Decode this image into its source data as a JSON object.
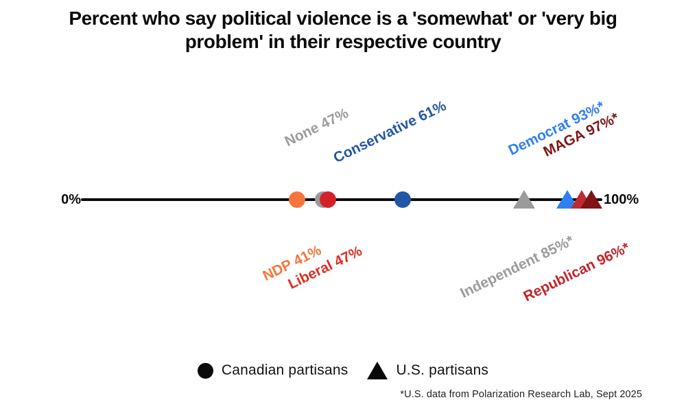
{
  "title": "Percent who say political violence is a 'somewhat' or 'very big problem' in their respective country",
  "axis": {
    "left_label": "0%",
    "right_label": "100%"
  },
  "legend": [
    {
      "shape": "circle",
      "label": "Canadian partisans",
      "color": "#0a0a0a"
    },
    {
      "shape": "triangle",
      "label": "U.S. partisans",
      "color": "#0a0a0a"
    }
  ],
  "footnote": "*U.S. data from Polarization Research Lab, Sept 2025",
  "chart_data": {
    "type": "scatter",
    "title": "Percent who say political violence is a 'somewhat' or 'very big problem' in their respective country",
    "xlabel": "",
    "ylabel": "",
    "xlim": [
      0,
      100
    ],
    "axis_tick_labels": [
      "0%",
      "100%"
    ],
    "legend_position": "bottom",
    "grid": false,
    "marker_meaning": {
      "circle": "Canadian partisans",
      "triangle": "U.S. partisans"
    },
    "points": [
      {
        "id": "ndp",
        "party": "NDP",
        "country": "Canada",
        "shape": "circle",
        "value": 41,
        "color": "#F5763C",
        "label": "NDP 41%",
        "label_color": "#F5763C",
        "label_side": "below"
      },
      {
        "id": "none",
        "party": "None",
        "country": "Canada",
        "shape": "circle",
        "value": 47,
        "color": "#9B9B9B",
        "label": "None 47%",
        "label_color": "#9B9B9B",
        "label_side": "above"
      },
      {
        "id": "liberal",
        "party": "Liberal",
        "country": "Canada",
        "shape": "circle",
        "value": 47,
        "color": "#D42127",
        "label": "Liberal 47%",
        "label_color": "#DC2E22",
        "label_side": "below"
      },
      {
        "id": "conservative",
        "party": "Conservative",
        "country": "Canada",
        "shape": "circle",
        "value": 61,
        "color": "#2356A6",
        "label": "Conservative 61%",
        "label_color": "#2356A6",
        "label_side": "above"
      },
      {
        "id": "independent",
        "party": "Independent",
        "country": "U.S.",
        "shape": "triangle",
        "value": 85,
        "color": "#9B9B9B",
        "label": "Independent 85%*",
        "label_color": "#9B9B9B",
        "label_side": "below"
      },
      {
        "id": "democrat",
        "party": "Democrat",
        "country": "U.S.",
        "shape": "triangle",
        "value": 93,
        "color": "#2E80F0",
        "label": "Democrat 93%*",
        "label_color": "#2E80F0",
        "label_side": "above"
      },
      {
        "id": "republican",
        "party": "Republican",
        "country": "U.S.",
        "shape": "triangle",
        "value": 96,
        "color": "#BC2B33",
        "label": "Republican 96%*",
        "label_color": "#C3242B",
        "label_side": "below"
      },
      {
        "id": "maga",
        "party": "MAGA",
        "country": "U.S.",
        "shape": "triangle",
        "value": 97,
        "color": "#7E1416",
        "label": "MAGA 97%*",
        "label_color": "#7E1416",
        "label_side": "above"
      }
    ]
  }
}
